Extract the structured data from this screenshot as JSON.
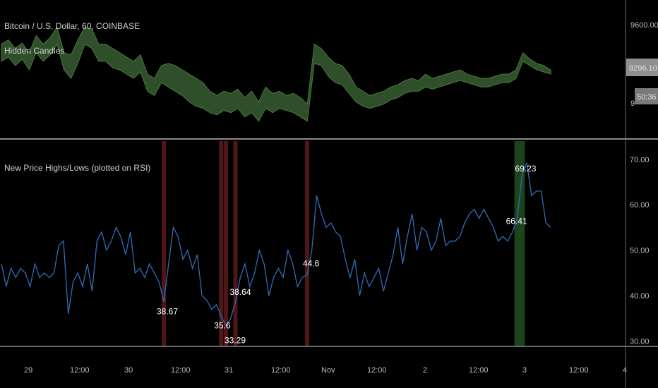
{
  "colors": {
    "background": "#000000",
    "price_band_fill": "#2f4f2a",
    "price_band_stroke": "#4a7a3a",
    "rsi_line": "#2f6db5",
    "low_highlight": "#5c1a1a",
    "high_highlight": "#1f4a1f",
    "separator": "#8a8a8a",
    "axis_text": "#bdbdbd",
    "badge_bg": "#8f8f8f"
  },
  "top_pane": {
    "title": "Bitcoin / U.S. Dollar, 60, COINBASE",
    "indicator": "Hidden Candles",
    "price_ticks": [
      "9600.00",
      "9"
    ],
    "last_price_badge": "9296.10",
    "countdown_badge": "50:36"
  },
  "bottom_pane": {
    "title": "New Price Highs/Lows (plotted on RSI)",
    "rsi_ticks": [
      "70.00",
      "60.00",
      "50.00",
      "40.00",
      "30.00"
    ]
  },
  "time_axis": [
    "29",
    "12:00",
    "30",
    "12:00",
    "31",
    "12:00",
    "Nov",
    "12:00",
    "2",
    "12:00",
    "3",
    "12:00",
    "4"
  ],
  "chart_data": [
    {
      "type": "area",
      "series": [
        {
          "values_upper": [
            9520,
            9540,
            9500,
            9525,
            9480,
            9560,
            9520,
            9550,
            9600,
            9480,
            9470,
            9540,
            9600,
            9590,
            9520,
            9520,
            9500,
            9480,
            9460,
            9440,
            9470,
            9380,
            9360,
            9420,
            9430,
            9420,
            9400,
            9380,
            9360,
            9340,
            9300,
            9280,
            9300,
            9290,
            9310,
            9270,
            9300,
            9250,
            9320,
            9290,
            9300,
            9280,
            9290,
            9270,
            9240,
            9520,
            9500,
            9460,
            9430,
            9420,
            9380,
            9320,
            9300,
            9280,
            9290,
            9300,
            9320,
            9330,
            9350,
            9360,
            9350,
            9380,
            9360,
            9370,
            9380,
            9390,
            9400,
            9380,
            9370,
            9360,
            9360,
            9370,
            9380,
            9380,
            9400,
            9480,
            9450,
            9430,
            9420,
            9400
          ],
          "values_lower": [
            9440,
            9460,
            9420,
            9450,
            9400,
            9480,
            9440,
            9470,
            9520,
            9400,
            9360,
            9430,
            9520,
            9500,
            9440,
            9440,
            9410,
            9400,
            9380,
            9360,
            9390,
            9300,
            9280,
            9340,
            9320,
            9300,
            9280,
            9250,
            9230,
            9220,
            9200,
            9190,
            9210,
            9200,
            9220,
            9180,
            9200,
            9160,
            9220,
            9200,
            9220,
            9210,
            9200,
            9180,
            9160,
            9430,
            9420,
            9370,
            9340,
            9330,
            9290,
            9250,
            9230,
            9220,
            9230,
            9240,
            9260,
            9270,
            9290,
            9300,
            9300,
            9320,
            9310,
            9320,
            9330,
            9340,
            9350,
            9340,
            9330,
            9320,
            9320,
            9330,
            9340,
            9340,
            9360,
            9440,
            9420,
            9400,
            9390,
            9380
          ]
        }
      ],
      "ylim": [
        9100,
        9700
      ]
    },
    {
      "type": "line",
      "series": [
        {
          "values": [
            47,
            42,
            46,
            44,
            46,
            45,
            42,
            47,
            44,
            45,
            44,
            45,
            51,
            52,
            36,
            43,
            45,
            42,
            47,
            41,
            52,
            54,
            50,
            52,
            55,
            53,
            49,
            54,
            45,
            46,
            44,
            47,
            45,
            43,
            38.67,
            47,
            55,
            53,
            48,
            50,
            46,
            49,
            40,
            39,
            37,
            38,
            35.6,
            33.29,
            35,
            38.64,
            44,
            47,
            42,
            45,
            50,
            47,
            40,
            44,
            46,
            44,
            50,
            47,
            42,
            44,
            44.6,
            50,
            62,
            58,
            55,
            56,
            54,
            53,
            48,
            44,
            48,
            40,
            45,
            42,
            44,
            46,
            41,
            45,
            49,
            55,
            47,
            53,
            58,
            50,
            55,
            54,
            50,
            52,
            57,
            51,
            52,
            52,
            53,
            56,
            58,
            59,
            57,
            59,
            57,
            55,
            52,
            53,
            52,
            54,
            57,
            66.41,
            69.23,
            62,
            63,
            63,
            56,
            55
          ]
        }
      ],
      "annotations": [
        "38.67",
        "35.6",
        "33.29",
        "38.64",
        "44.6",
        "69.23",
        "66.41"
      ],
      "ylim": [
        29,
        74
      ]
    }
  ]
}
